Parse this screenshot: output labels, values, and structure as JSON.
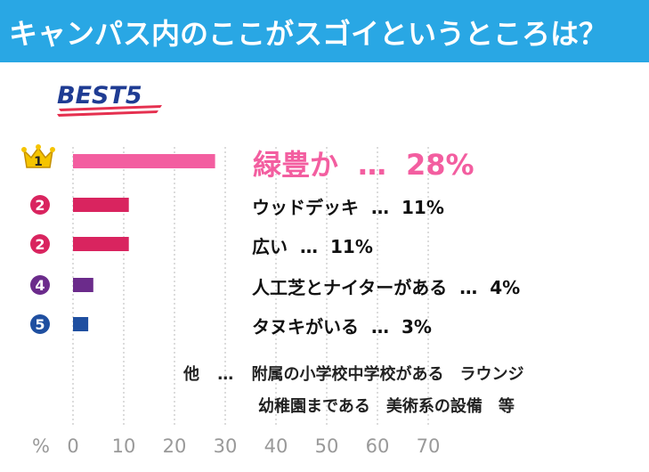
{
  "header": {
    "title": "キャンパス内のここがスゴイというところは？"
  },
  "best_label": "BEST5",
  "chart_data": {
    "type": "bar",
    "orientation": "horizontal",
    "categories": [
      "緑豊か",
      "ウッドデッキ",
      "広い",
      "人工芝とナイターがある",
      "タヌキがいる"
    ],
    "ranks": [
      "1",
      "2",
      "2",
      "4",
      "5"
    ],
    "values": [
      28,
      11,
      11,
      4,
      3
    ],
    "value_labels": [
      "28%",
      "11%",
      "11%",
      "4%",
      "3%"
    ],
    "separator": "…",
    "unit_label": "%",
    "xticks": [
      "0",
      "10",
      "20",
      "30",
      "40",
      "50",
      "60",
      "70"
    ],
    "xlim": [
      0,
      70
    ],
    "grid": true,
    "colors": [
      "#f35ea0",
      "#d9245f",
      "#d9245f",
      "#6b2b8b",
      "#1f4fa0"
    ]
  },
  "others": {
    "prefix": "他",
    "separator": "…",
    "line1": "附属の小学校中学校がある　ラウンジ",
    "line2": "幼稚園まである　美術系の設備　等"
  }
}
